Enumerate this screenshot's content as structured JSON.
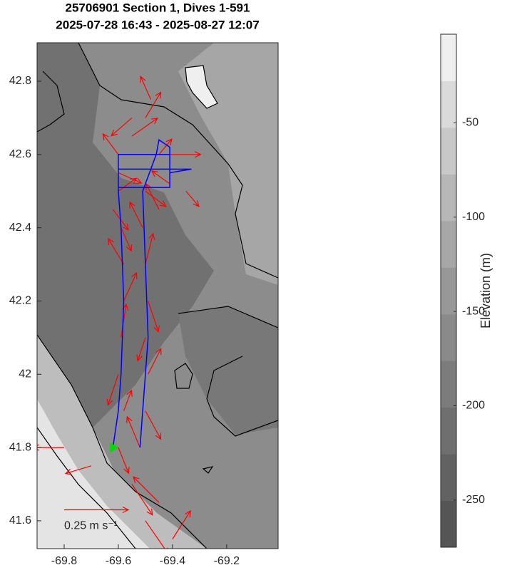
{
  "chart_data": {
    "type": "quiver_map",
    "title": "25706901 Section 1, Dives 1-591",
    "subtitle": "2025-07-28 16:43 - 2025-08-27 12:07",
    "xlim": [
      -69.9,
      -69.01
    ],
    "ylim": [
      41.524,
      42.905
    ],
    "xticks": [
      -69.8,
      -69.6,
      -69.4,
      -69.2
    ],
    "yticks": [
      41.6,
      41.8,
      42,
      42.2,
      42.4,
      42.6,
      42.8
    ],
    "track": {
      "color": "#0000ff",
      "lon": [
        -69.62,
        -69.6,
        -69.59,
        -69.58,
        -69.59,
        -69.6,
        -69.6,
        -69.5,
        -69.41,
        -69.41,
        -69.6,
        -69.6,
        -69.33,
        -69.41,
        -69.41,
        -69.45,
        -69.46,
        -69.51,
        -69.5,
        -69.49,
        -69.51,
        -69.52
      ],
      "lat": [
        41.8,
        41.9,
        42.0,
        42.2,
        42.4,
        42.5,
        42.6,
        42.6,
        42.6,
        42.51,
        42.51,
        42.56,
        42.56,
        42.55,
        42.62,
        42.64,
        42.6,
        42.5,
        42.3,
        42.1,
        41.9,
        41.8
      ]
    },
    "currents": {
      "color": "#ff0000",
      "lon": [
        -69.6,
        -69.52,
        -69.58,
        -69.5,
        -69.6,
        -69.49,
        -69.59,
        -69.5,
        -69.58,
        -69.49,
        -69.58,
        -69.5,
        -69.59,
        -69.51,
        -69.6,
        -69.5,
        -69.6,
        -69.45,
        -69.41,
        -69.55,
        -69.5,
        -69.6,
        -69.41,
        -69.35,
        -69.48,
        -69.55,
        -69.62,
        -69.45,
        -69.55,
        -69.45,
        -69.7,
        -69.8,
        -69.5,
        -69.4
      ],
      "lat": [
        41.8,
        41.8,
        41.9,
        41.9,
        42.0,
        42.0,
        42.1,
        42.1,
        42.2,
        42.2,
        42.3,
        42.3,
        42.4,
        42.4,
        42.5,
        42.5,
        42.6,
        42.6,
        42.6,
        42.7,
        42.7,
        42.55,
        42.52,
        42.5,
        42.75,
        42.65,
        42.45,
        42.45,
        41.7,
        41.65,
        41.75,
        41.8,
        41.6,
        41.55
      ],
      "u": [
        0.04,
        -0.05,
        0.03,
        0.06,
        -0.04,
        0.05,
        0.02,
        -0.03,
        0.05,
        0.04,
        -0.06,
        0.03,
        0.04,
        -0.05,
        0.07,
        0.08,
        -0.06,
        0.05,
        0.12,
        -0.08,
        0.06,
        0.09,
        -0.07,
        0.05,
        -0.04,
        0.1,
        0.06,
        -0.05,
        0.08,
        -0.1,
        -0.1,
        -0.12,
        0.09,
        0.07
      ],
      "v": [
        -0.1,
        0.12,
        0.08,
        -0.11,
        -0.12,
        0.1,
        0.13,
        -0.09,
        0.11,
        -0.12,
        0.1,
        0.12,
        -0.09,
        0.1,
        0.05,
        -0.06,
        0.08,
        0.06,
        0.0,
        -0.07,
        0.1,
        -0.04,
        0.05,
        -0.06,
        0.09,
        0.07,
        -0.08,
        0.1,
        -0.12,
        0.1,
        -0.03,
        0.0,
        -0.13,
        0.11
      ]
    },
    "scale_arrow": {
      "lon": -69.8,
      "lat": 41.63,
      "u": 0.25,
      "label": "0.25 m s⁻¹"
    },
    "colorbar": {
      "label": "Elevation (m)",
      "clim": [
        -275,
        -3
      ],
      "ticks": [
        -250,
        -200,
        -150,
        -100,
        -50
      ],
      "colormap": [
        "#555555",
        "#626262",
        "#6f6f6f",
        "#7c7c7c",
        "#8a8a8a",
        "#989898",
        "#a7a7a7",
        "#b7b7b7",
        "#c8c8c8",
        "#dadada",
        "#efefef"
      ]
    }
  }
}
